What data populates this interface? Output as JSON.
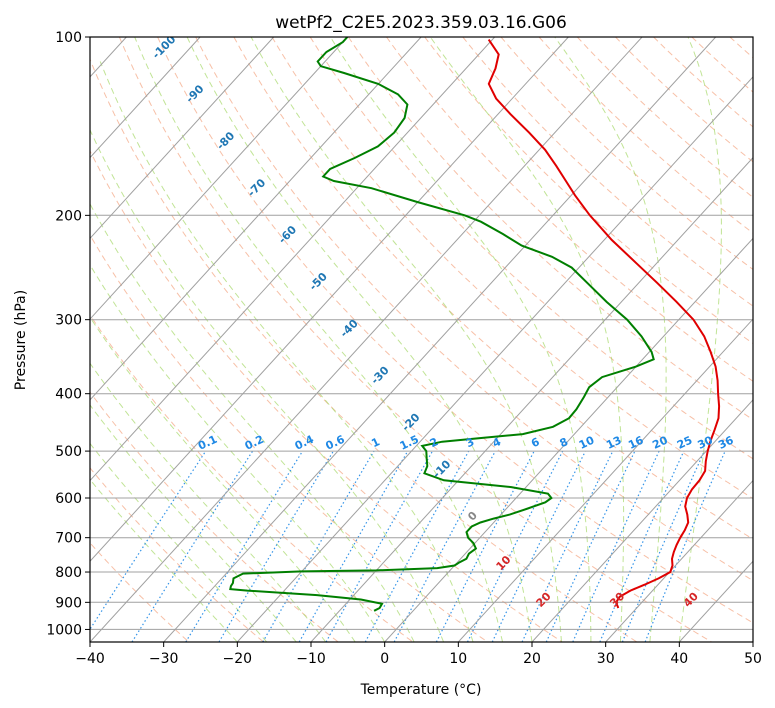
{
  "chart_data": {
    "type": "line",
    "title": "wetPf2_C2E5.2023.359.03.16.G06",
    "xlabel": "Temperature (°C)",
    "ylabel": "Pressure (hPa)",
    "xlim": [
      -40,
      50
    ],
    "ylim": [
      1050,
      100
    ],
    "y_scale": "log",
    "x_ticks": [
      -40,
      -30,
      -20,
      -10,
      0,
      10,
      20,
      30,
      40,
      50
    ],
    "x_tick_labels": [
      "−40",
      "−30",
      "−20",
      "−10",
      "0",
      "10",
      "20",
      "30",
      "40",
      "50"
    ],
    "y_ticks": [
      100,
      200,
      300,
      400,
      500,
      600,
      700,
      800,
      900,
      1000
    ],
    "y_tick_labels": [
      "100",
      "200",
      "300",
      "400",
      "500",
      "600",
      "700",
      "800",
      "900",
      "1000"
    ],
    "grid": true,
    "series": [
      {
        "color": "#e00000",
        "points": [
          [
            920,
            27.5
          ],
          [
            900,
            26.5
          ],
          [
            880,
            26.3
          ],
          [
            860,
            27
          ],
          [
            840,
            28.2
          ],
          [
            820,
            29.3
          ],
          [
            800,
            30.1
          ],
          [
            780,
            29.6
          ],
          [
            760,
            28.7
          ],
          [
            740,
            28.1
          ],
          [
            720,
            27.6
          ],
          [
            700,
            27.2
          ],
          [
            680,
            26.9
          ],
          [
            660,
            26.4
          ],
          [
            640,
            25.3
          ],
          [
            620,
            24
          ],
          [
            600,
            23.2
          ],
          [
            580,
            22.8
          ],
          [
            560,
            22.7
          ],
          [
            540,
            22.3
          ],
          [
            520,
            21.2
          ],
          [
            500,
            20.2
          ],
          [
            480,
            19.3
          ],
          [
            460,
            18.5
          ],
          [
            440,
            17.6
          ],
          [
            420,
            16.2
          ],
          [
            400,
            14.5
          ],
          [
            380,
            12.8
          ],
          [
            360,
            10.8
          ],
          [
            340,
            8.3
          ],
          [
            320,
            5.5
          ],
          [
            300,
            2
          ],
          [
            280,
            -2.5
          ],
          [
            260,
            -7.5
          ],
          [
            240,
            -13
          ],
          [
            220,
            -19
          ],
          [
            200,
            -25
          ],
          [
            185,
            -29.5
          ],
          [
            175,
            -32.5
          ],
          [
            165,
            -35.7
          ],
          [
            155,
            -39.2
          ],
          [
            145,
            -43.5
          ],
          [
            135,
            -48.3
          ],
          [
            127,
            -52.2
          ],
          [
            120,
            -55
          ],
          [
            113,
            -56
          ],
          [
            107,
            -57.3
          ],
          [
            101,
            -60.5
          ]
        ]
      },
      {
        "color": "#007f00",
        "points": [
          [
            930,
            -5.3
          ],
          [
            920,
            -4.9
          ],
          [
            905,
            -5.1
          ],
          [
            890,
            -8.5
          ],
          [
            875,
            -15
          ],
          [
            860,
            -25
          ],
          [
            855,
            -27.5
          ],
          [
            845,
            -27.8
          ],
          [
            835,
            -27.9
          ],
          [
            820,
            -28.4
          ],
          [
            805,
            -27.7
          ],
          [
            798,
            -20
          ],
          [
            795,
            -10
          ],
          [
            788,
            -2
          ],
          [
            780,
            0
          ],
          [
            770,
            0.3
          ],
          [
            760,
            0.8
          ],
          [
            745,
            0.5
          ],
          [
            730,
            0.8
          ],
          [
            715,
            -0.2
          ],
          [
            700,
            -1.6
          ],
          [
            685,
            -2.5
          ],
          [
            670,
            -2.5
          ],
          [
            660,
            -1.8
          ],
          [
            650,
            -0.5
          ],
          [
            640,
            1.2
          ],
          [
            625,
            2.9
          ],
          [
            610,
            4.5
          ],
          [
            600,
            4.8
          ],
          [
            590,
            3.8
          ],
          [
            575,
            -2
          ],
          [
            560,
            -12
          ],
          [
            545,
            -15.5
          ],
          [
            530,
            -16
          ],
          [
            515,
            -17
          ],
          [
            500,
            -18
          ],
          [
            490,
            -19.2
          ],
          [
            482,
            -17
          ],
          [
            475,
            -12
          ],
          [
            468,
            -7
          ],
          [
            455,
            -3.8
          ],
          [
            440,
            -2.7
          ],
          [
            425,
            -2.8
          ],
          [
            405,
            -3.3
          ],
          [
            390,
            -3.8
          ],
          [
            375,
            -3.3
          ],
          [
            360,
            0
          ],
          [
            350,
            1.5
          ],
          [
            340,
            0.3
          ],
          [
            320,
            -3
          ],
          [
            300,
            -7
          ],
          [
            280,
            -12
          ],
          [
            260,
            -17
          ],
          [
            245,
            -21
          ],
          [
            235,
            -25
          ],
          [
            225,
            -30.5
          ],
          [
            215,
            -34.5
          ],
          [
            205,
            -39
          ],
          [
            200,
            -42
          ],
          [
            190,
            -50
          ],
          [
            180,
            -58
          ],
          [
            175,
            -64
          ],
          [
            172,
            -66
          ],
          [
            167,
            -66
          ],
          [
            160,
            -64
          ],
          [
            153,
            -62.3
          ],
          [
            145,
            -61.8
          ],
          [
            137,
            -62.2
          ],
          [
            130,
            -63.5
          ],
          [
            125,
            -66
          ],
          [
            120,
            -70
          ],
          [
            115,
            -76
          ],
          [
            112,
            -80
          ],
          [
            110,
            -81
          ],
          [
            106,
            -81
          ],
          [
            102,
            -80
          ],
          [
            100,
            -80
          ]
        ]
      }
    ],
    "dry_adiabat_labels": [
      "-100",
      "-90",
      "-80",
      "-70",
      "-60",
      "-50",
      "-40",
      "-30",
      "-20",
      "-10",
      "0",
      "10",
      "20",
      "30",
      "40"
    ],
    "mixing_ratio_labels": [
      "0.1",
      "0.2",
      "0.4",
      "0.6",
      "1",
      "1.5",
      "2",
      "3",
      "4",
      "6",
      "8",
      "10",
      "13",
      "16",
      "20",
      "25",
      "30",
      "36"
    ],
    "colors": {
      "dry_adiabat": "#f4a582",
      "moist_adiabat": "#a6d96a",
      "mixing_ratio": "#1e88e5",
      "isotherm": "#a0a0a0"
    }
  }
}
